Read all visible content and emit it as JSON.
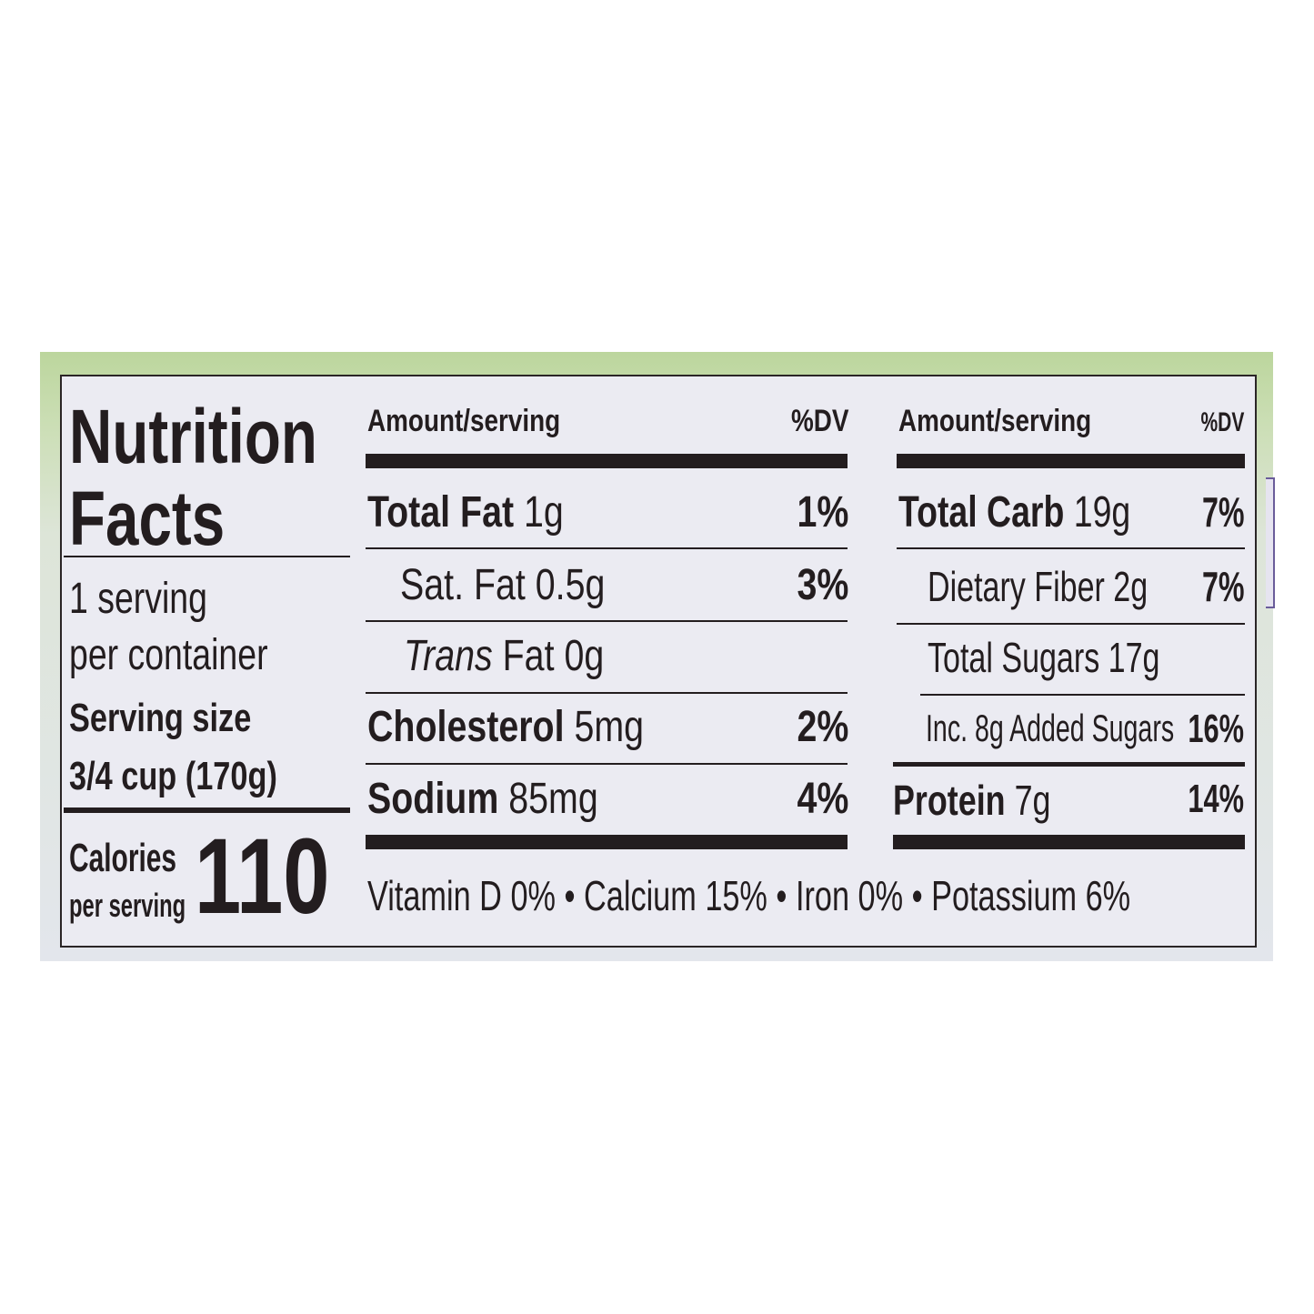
{
  "title_line1": "Nutrition",
  "title_line2": "Facts",
  "servings_line1": "1 serving",
  "servings_line2": "per container",
  "serving_size_label": "Serving size",
  "serving_size_value": "3/4 cup (170g)",
  "calories_label_line1": "Calories",
  "calories_label_line2": "per serving",
  "calories_value": "110",
  "left_table": {
    "header_amount": "Amount/serving",
    "header_dv": "%DV",
    "rows": [
      {
        "name": "Total Fat",
        "amount": "1g",
        "dv": "1%"
      },
      {
        "name": "Sat. Fat",
        "amount": "0.5g",
        "dv": "3%"
      },
      {
        "name": "Trans",
        "suffix": "Fat 0g",
        "dv": ""
      },
      {
        "name": "Cholesterol",
        "amount": "5mg",
        "dv": "2%"
      },
      {
        "name": "Sodium",
        "amount": "85mg",
        "dv": "4%"
      }
    ]
  },
  "right_table": {
    "header_amount": "Amount/serving",
    "header_dv": "%DV",
    "rows": [
      {
        "name": "Total Carb",
        "amount": "19g",
        "dv": "7%"
      },
      {
        "name": "Dietary Fiber 2g",
        "dv": "7%"
      },
      {
        "name": "Total Sugars 17g",
        "dv": ""
      },
      {
        "name": "Inc. 8g Added Sugars",
        "dv": "16%"
      },
      {
        "name": "Protein",
        "amount": "7g",
        "dv": "14%"
      }
    ]
  },
  "vitamins": "Vitamin D 0% • Calcium 15% • Iron 0% • Potassium 6%",
  "colors": {
    "ink": "#231d1f",
    "label_bg": "#ebebf2",
    "package_green": "#bcd69d"
  }
}
